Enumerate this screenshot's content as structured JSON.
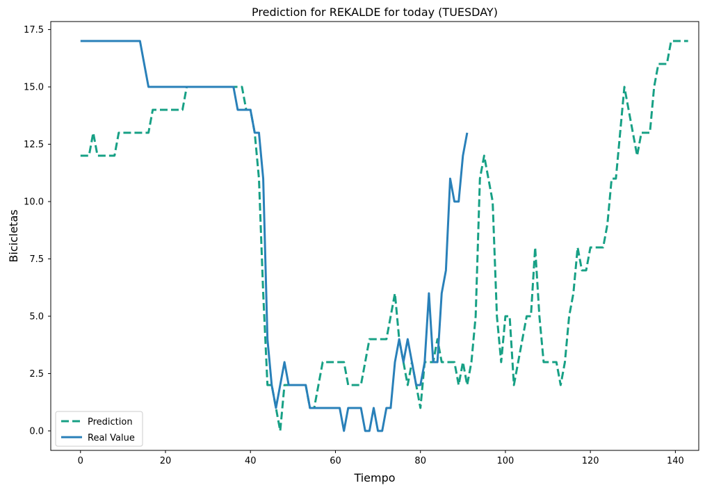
{
  "chart_data": {
    "type": "line",
    "title": "Prediction for REKALDE for today (TUESDAY)",
    "xlabel": "Tiempo",
    "ylabel": "Bicicletas",
    "xlim": [
      -7,
      145.5
    ],
    "ylim": [
      -0.85,
      17.85
    ],
    "xticks": [
      0,
      20,
      40,
      60,
      80,
      100,
      120,
      140
    ],
    "yticks": [
      0.0,
      2.5,
      5.0,
      7.5,
      10.0,
      12.5,
      15.0,
      17.5
    ],
    "ytick_labels": [
      "0.0",
      "2.5",
      "5.0",
      "7.5",
      "10.0",
      "12.5",
      "15.0",
      "17.5"
    ],
    "grid": false,
    "legend_position": "lower-left",
    "series": [
      {
        "name": "Prediction",
        "color": "#17a085",
        "style": "dashed",
        "x": [
          0,
          1,
          2,
          3,
          4,
          5,
          6,
          7,
          8,
          9,
          10,
          11,
          12,
          13,
          14,
          15,
          16,
          17,
          18,
          19,
          20,
          21,
          22,
          23,
          24,
          25,
          26,
          27,
          28,
          29,
          30,
          31,
          32,
          33,
          34,
          35,
          36,
          37,
          38,
          39,
          40,
          41,
          42,
          43,
          44,
          45,
          46,
          47,
          48,
          49,
          50,
          51,
          52,
          53,
          54,
          55,
          56,
          57,
          58,
          59,
          60,
          61,
          62,
          63,
          64,
          65,
          66,
          67,
          68,
          69,
          70,
          71,
          72,
          73,
          74,
          75,
          76,
          77,
          78,
          79,
          80,
          81,
          82,
          83,
          84,
          85,
          86,
          87,
          88,
          89,
          90,
          91,
          92,
          93,
          94,
          95,
          96,
          97,
          98,
          99,
          100,
          101,
          102,
          103,
          104,
          105,
          106,
          107,
          108,
          109,
          110,
          111,
          112,
          113,
          114,
          115,
          116,
          117,
          118,
          119,
          120,
          121,
          122,
          123,
          124,
          125,
          126,
          127,
          128,
          129,
          130,
          131,
          132,
          133,
          134,
          135,
          136,
          137,
          138,
          139,
          140,
          141,
          142,
          143
        ],
        "values": [
          12,
          12,
          12,
          13,
          12,
          12,
          12,
          12,
          12,
          13,
          13,
          13,
          13,
          13,
          13,
          13,
          13,
          14,
          14,
          14,
          14,
          14,
          14,
          14,
          14,
          15,
          15,
          15,
          15,
          15,
          15,
          15,
          15,
          15,
          15,
          15,
          15,
          15,
          15,
          14,
          14,
          13,
          11,
          6,
          2,
          2,
          1,
          0,
          2,
          2,
          2,
          2,
          2,
          2,
          1,
          1,
          2,
          3,
          3,
          3,
          3,
          3,
          3,
          2,
          2,
          2,
          2,
          3,
          4,
          4,
          4,
          4,
          4,
          5,
          6,
          4,
          3,
          2,
          3,
          2,
          1,
          3,
          3,
          3,
          4,
          3,
          3,
          3,
          3,
          2,
          3,
          2,
          3,
          5,
          11,
          12,
          11,
          10,
          5,
          3,
          5,
          5,
          2,
          3,
          4,
          5,
          5,
          8,
          5,
          3,
          3,
          3,
          3,
          2,
          3,
          5,
          6,
          8,
          7,
          7,
          8,
          8,
          8,
          8,
          9,
          11,
          11,
          13,
          15,
          14,
          13,
          12,
          13,
          13,
          13,
          15,
          16,
          16,
          16,
          17,
          17,
          17,
          17,
          17
        ]
      },
      {
        "name": "Real Value",
        "color": "#2980b9",
        "style": "solid",
        "x": [
          0,
          1,
          2,
          3,
          4,
          5,
          6,
          7,
          8,
          9,
          10,
          11,
          12,
          13,
          14,
          15,
          16,
          17,
          18,
          19,
          20,
          21,
          22,
          23,
          24,
          25,
          26,
          27,
          28,
          29,
          30,
          31,
          32,
          33,
          34,
          35,
          36,
          37,
          38,
          39,
          40,
          41,
          42,
          43,
          44,
          45,
          46,
          47,
          48,
          49,
          50,
          51,
          52,
          53,
          54,
          55,
          56,
          57,
          58,
          59,
          60,
          61,
          62,
          63,
          64,
          65,
          66,
          67,
          68,
          69,
          70,
          71,
          72,
          73,
          74,
          75,
          76,
          77,
          78,
          79,
          80,
          81,
          82,
          83,
          84,
          85,
          86,
          87,
          88,
          89,
          90,
          91
        ],
        "values": [
          17,
          17,
          17,
          17,
          17,
          17,
          17,
          17,
          17,
          17,
          17,
          17,
          17,
          17,
          17,
          16,
          15,
          15,
          15,
          15,
          15,
          15,
          15,
          15,
          15,
          15,
          15,
          15,
          15,
          15,
          15,
          15,
          15,
          15,
          15,
          15,
          15,
          14,
          14,
          14,
          14,
          13,
          13,
          11,
          4,
          2,
          1,
          2,
          3,
          2,
          2,
          2,
          2,
          2,
          1,
          1,
          1,
          1,
          1,
          1,
          1,
          1,
          0,
          1,
          1,
          1,
          1,
          0,
          0,
          1,
          0,
          0,
          1,
          1,
          3,
          4,
          3,
          4,
          3,
          2,
          2,
          3,
          6,
          3,
          3,
          6,
          7,
          11,
          10,
          10,
          12,
          13
        ]
      }
    ]
  }
}
